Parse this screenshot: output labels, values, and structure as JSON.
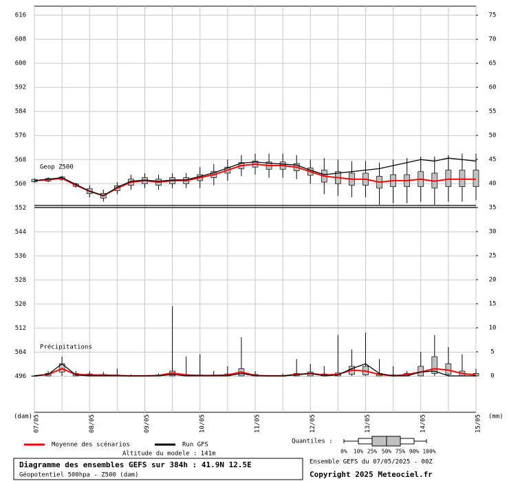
{
  "chart_data": {
    "type": "ensemble",
    "title": "Diagramme des ensembles GEFS sur 384h : 41.9N 12.5E",
    "subtitle": "Géopotentiel 500hpa - Z500 (dam)",
    "run_label": "Ensemble GEFS du 07/05/2025 - 00Z",
    "altitude_label": "Altitude du modele : 141m",
    "copyright": "Copyright 2025 Meteociel.fr",
    "y_unit": "(dam)",
    "y2_unit": "(mm)",
    "annotations": [
      "Geop Z500",
      "Précipitations"
    ],
    "quantiles": {
      "label": "Quantiles :",
      "levels": [
        "0%",
        "10%",
        "25%",
        "50%",
        "75%",
        "90%",
        "100%"
      ]
    },
    "x": [
      0,
      12,
      24,
      36,
      48,
      60,
      72,
      84,
      96,
      108,
      120,
      132,
      144,
      156,
      168,
      180,
      192,
      204,
      216,
      228,
      240,
      252,
      264,
      276,
      288,
      300,
      312,
      324,
      336,
      348,
      360,
      372,
      384
    ],
    "xlim": [
      0,
      384
    ],
    "xticks": [
      {
        "value": 0,
        "label": "07/05"
      },
      {
        "value": 48,
        "label": "08/05"
      },
      {
        "value": 96,
        "label": "09/05"
      },
      {
        "value": 144,
        "label": "10/05"
      },
      {
        "value": 192,
        "label": "11/05"
      },
      {
        "value": 240,
        "label": "12/05"
      },
      {
        "value": 288,
        "label": "13/05"
      },
      {
        "value": 336,
        "label": "14/05"
      },
      {
        "value": 384,
        "label": "15/05"
      }
    ],
    "ylim": [
      484,
      619
    ],
    "yticks": [
      496,
      504,
      512,
      520,
      528,
      536,
      544,
      552,
      560,
      568,
      576,
      584,
      592,
      600,
      608,
      616
    ],
    "y2lim": [
      -7.57,
      76.87
    ],
    "y2ticks": [
      0,
      5,
      10,
      15,
      20,
      25,
      30,
      35,
      40,
      45,
      50,
      55,
      60,
      65,
      70,
      75
    ],
    "grid": true,
    "series": [
      {
        "name": "Moyenne des scénarios",
        "color": "#ff0000",
        "axis": "y",
        "values": [
          561,
          561.3,
          561.8,
          559.5,
          557.5,
          556,
          558.5,
          560.5,
          561,
          560.5,
          561,
          561,
          562,
          563,
          564.5,
          566,
          566.5,
          566,
          566,
          565.5,
          564,
          562.5,
          562,
          561.5,
          561.5,
          560.5,
          561,
          561,
          561.5,
          560.8,
          561.5,
          561.5,
          561.5
        ]
      },
      {
        "name": "Run GFS",
        "color": "#000000",
        "axis": "y",
        "values": [
          561,
          561.5,
          562,
          559.8,
          557.5,
          556,
          558.8,
          560.8,
          561.2,
          560.8,
          561.2,
          561.3,
          562.4,
          563.6,
          565.2,
          566.8,
          567.2,
          566.8,
          566.5,
          566.2,
          564.5,
          563,
          563.5,
          564,
          564.5,
          565,
          566,
          567,
          568,
          567.5,
          568.5,
          568,
          567.5
        ]
      },
      {
        "name": "Moyenne des scénarios",
        "color": "#ff0000",
        "axis": "y2",
        "values": [
          0,
          0.3,
          1.5,
          0.3,
          0.2,
          0.2,
          0.1,
          0,
          0,
          0.1,
          0.6,
          0.2,
          0.1,
          0.1,
          0.2,
          0.8,
          0.1,
          0,
          0,
          0.3,
          0.5,
          0.2,
          0.3,
          1.2,
          1,
          0.3,
          0,
          0.3,
          0.8,
          1.5,
          1.2,
          0.5,
          0.2
        ]
      },
      {
        "name": "Run GFS",
        "color": "#000000",
        "axis": "y2",
        "values": [
          0,
          0.3,
          2.5,
          0.2,
          0,
          0,
          0,
          0,
          0,
          0,
          0.3,
          0,
          0,
          0,
          0,
          0.5,
          0,
          0,
          0,
          0.2,
          0.5,
          0,
          0.2,
          1.5,
          2.5,
          0.5,
          0,
          0,
          0.8,
          1,
          0,
          0,
          0
        ]
      }
    ],
    "geop_boxes": {
      "low": [
        560.2,
        560.5,
        561,
        558.7,
        555.5,
        554,
        556.5,
        558,
        558.5,
        558,
        558.5,
        558.5,
        558.5,
        559.5,
        561,
        562.5,
        563,
        562,
        562,
        561.5,
        560,
        556.5,
        556,
        555.5,
        555.5,
        553,
        553.5,
        553.5,
        554,
        553,
        554,
        554,
        554.5
      ],
      "q1": [
        560.6,
        560.9,
        561.4,
        559.1,
        556.7,
        555.2,
        557.7,
        559.5,
        560,
        559.5,
        560,
        560,
        561,
        562,
        563.5,
        565,
        565.5,
        564.8,
        564.8,
        564.3,
        562.8,
        560.5,
        560,
        559.5,
        559.5,
        558.5,
        559,
        559,
        559,
        558.5,
        559,
        559,
        559
      ],
      "q3": [
        561.4,
        561.7,
        562.2,
        559.9,
        558.3,
        556.8,
        559.3,
        561.5,
        562,
        561.5,
        562,
        562,
        563,
        564,
        565.5,
        567,
        567.5,
        567.2,
        567.2,
        566.7,
        565.2,
        564.5,
        564,
        563.5,
        563.5,
        562.5,
        563,
        563,
        564,
        563.5,
        564.5,
        564.5,
        564.5
      ],
      "high": [
        561.8,
        562.1,
        562.6,
        560.3,
        559.5,
        558,
        560.5,
        563,
        563.5,
        563,
        563.5,
        563.5,
        565.5,
        566.5,
        568,
        569.5,
        570,
        570,
        570,
        569.5,
        568,
        568.5,
        568,
        567.5,
        567.5,
        567,
        568,
        568.5,
        569,
        569,
        569.5,
        570,
        570
      ]
    },
    "precip_boxes": {
      "low": [
        0,
        0,
        0,
        0,
        0,
        0,
        0,
        0,
        0,
        0,
        0,
        0,
        0,
        0,
        0,
        0,
        0,
        0,
        0,
        0,
        0,
        0,
        0,
        0,
        0,
        0,
        0,
        0,
        0,
        0,
        0,
        0,
        0
      ],
      "q1": [
        0,
        0,
        0.8,
        0,
        0,
        0,
        0,
        0,
        0,
        0,
        0,
        0,
        0,
        0,
        0,
        0,
        0,
        0,
        0,
        0,
        0,
        0,
        0,
        0.3,
        0.2,
        0,
        0,
        0,
        0,
        0.5,
        0.3,
        0,
        0
      ],
      "q3": [
        0,
        0.5,
        2.5,
        0.5,
        0.4,
        0.3,
        0.2,
        0,
        0,
        0.2,
        1,
        0.3,
        0.2,
        0.2,
        0.4,
        1.5,
        0.3,
        0,
        0,
        0.5,
        0.8,
        0.4,
        0.6,
        2,
        2,
        0.5,
        0.2,
        0.5,
        2,
        4,
        2.5,
        1,
        0.5
      ],
      "high": [
        0,
        1,
        4,
        1,
        1,
        0.8,
        1.5,
        0.3,
        0,
        0.5,
        14.5,
        4,
        4.5,
        1,
        2,
        8,
        1,
        0,
        0.5,
        3.5,
        2.5,
        2,
        8.5,
        5.5,
        9,
        3.5,
        2,
        1,
        5,
        8.5,
        6,
        4.5,
        1.5
      ]
    }
  }
}
